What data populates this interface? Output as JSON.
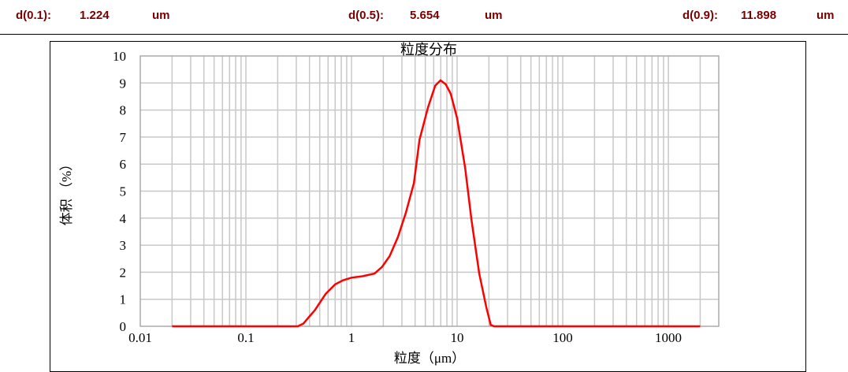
{
  "header": {
    "d10": {
      "label": "d(0.1):",
      "value": "1.224",
      "unit": "um"
    },
    "d50": {
      "label": "d(0.5):",
      "value": "5.654",
      "unit": "um"
    },
    "d90": {
      "label": "d(0.9):",
      "value": "11.898",
      "unit": "um"
    },
    "text_color": "#7a0000"
  },
  "chart_data": {
    "type": "line",
    "title": "粒度分布",
    "xlabel": "粒度（μm）",
    "ylabel": "体积 （%）",
    "xscale": "log",
    "xlim": [
      0.01,
      3000
    ],
    "ylim": [
      0,
      10
    ],
    "xticks": [
      "0.01",
      "0.1",
      "1",
      "10",
      "100",
      "1000"
    ],
    "yticks": [
      "0",
      "1",
      "2",
      "3",
      "4",
      "5",
      "6",
      "7",
      "8",
      "9",
      "10"
    ],
    "grid": true,
    "series": [
      {
        "color": "#ff0000",
        "x": [
          0.02,
          0.31,
          0.35,
          0.45,
          0.57,
          0.7,
          0.83,
          1.0,
          1.27,
          1.65,
          1.95,
          2.3,
          2.75,
          3.27,
          3.9,
          4.4,
          5.3,
          6.2,
          6.97,
          7.8,
          8.7,
          10.0,
          11.9,
          13.7,
          16.2,
          18.9,
          20.8,
          22.4,
          2000
        ],
        "y": [
          0,
          0,
          0.1,
          0.6,
          1.2,
          1.55,
          1.7,
          1.8,
          1.85,
          1.95,
          2.2,
          2.6,
          3.3,
          4.2,
          5.3,
          6.9,
          8.1,
          8.9,
          9.1,
          8.95,
          8.6,
          7.7,
          5.86,
          3.9,
          1.95,
          0.7,
          0.05,
          0,
          0
        ]
      }
    ]
  }
}
